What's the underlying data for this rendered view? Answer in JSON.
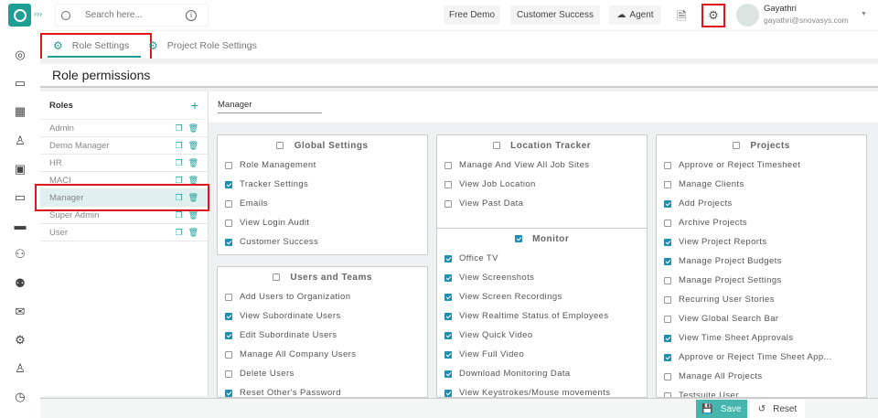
{
  "colors": {
    "accent": "#1f9e95",
    "checkbox": "#1f8fb0",
    "highlight": "#e0161b"
  },
  "search": {
    "placeholder": "Search here..."
  },
  "topbar": {
    "free_demo": "Free Demo",
    "customer_success": "Customer Success",
    "agent": "Agent"
  },
  "user": {
    "name": "Gayathri",
    "email": "gayathri@snovasys.com"
  },
  "tabs": [
    {
      "label": "Role Settings",
      "active": true
    },
    {
      "label": "Project Role Settings",
      "active": false
    }
  ],
  "page_title": "Role permissions",
  "roles": {
    "header": "Roles",
    "items": [
      "Admin",
      "Demo Manager",
      "HR",
      "MACI",
      "Manager",
      "Super Admin",
      "User"
    ],
    "selected": "Manager"
  },
  "selected_role": "Manager",
  "sections": [
    {
      "title": "Global Settings",
      "checked": false,
      "items": [
        [
          "Role Management",
          false
        ],
        [
          "Tracker Settings",
          true
        ],
        [
          "Emails",
          false
        ],
        [
          "View Login Audit",
          false
        ],
        [
          "Customer Success",
          true
        ]
      ]
    },
    {
      "title": "Users and Teams",
      "checked": false,
      "items": [
        [
          "Add Users to Organization",
          false
        ],
        [
          "View Subordinate Users",
          true
        ],
        [
          "Edit Subordinate Users",
          true
        ],
        [
          "Manage All Company Users",
          false
        ],
        [
          "Delete Users",
          false
        ],
        [
          "Reset Other's Password",
          true
        ]
      ]
    },
    {
      "title": "Location Tracker",
      "checked": false,
      "items": [
        [
          "Manage And View All Job Sites",
          false
        ],
        [
          "View Job Location",
          false
        ],
        [
          "View Past Data",
          false
        ]
      ]
    },
    {
      "title": "Monitor",
      "checked": true,
      "items": [
        [
          "Office TV",
          true
        ],
        [
          "View Screenshots",
          true
        ],
        [
          "View Screen Recordings",
          true
        ],
        [
          "View Realtime Status of Employees",
          true
        ],
        [
          "View Quick Video",
          true
        ],
        [
          "View Full Video",
          true
        ],
        [
          "Download Monitoring Data",
          true
        ],
        [
          "View Keystrokes/Mouse movements",
          true
        ]
      ]
    },
    {
      "title": "Projects",
      "checked": false,
      "items": [
        [
          "Approve or Reject Timesheet",
          false
        ],
        [
          "Manage Clients",
          false
        ],
        [
          "Add Projects",
          true
        ],
        [
          "Archive Projects",
          false
        ],
        [
          "View Project Reports",
          true
        ],
        [
          "Manage Project Budgets",
          true
        ],
        [
          "Manage Project Settings",
          false
        ],
        [
          "Recurring User Stories",
          false
        ],
        [
          "View Global Search Bar",
          false
        ],
        [
          "View Time Sheet Approvals",
          true
        ],
        [
          "Approve or Reject Time Sheet App...",
          true
        ],
        [
          "Manage All Projects",
          false
        ],
        [
          "Testsuite User",
          false
        ]
      ]
    }
  ],
  "footer": {
    "save": "Save",
    "reset": "Reset"
  },
  "sidebar_icons": [
    "dashboard-icon",
    "tv-icon",
    "calendar-icon",
    "user-icon",
    "briefcase-icon",
    "monitor-icon",
    "card-icon",
    "users-icon",
    "team-icon",
    "mail-icon",
    "settings-icon",
    "profile-icon",
    "alarm-icon"
  ]
}
